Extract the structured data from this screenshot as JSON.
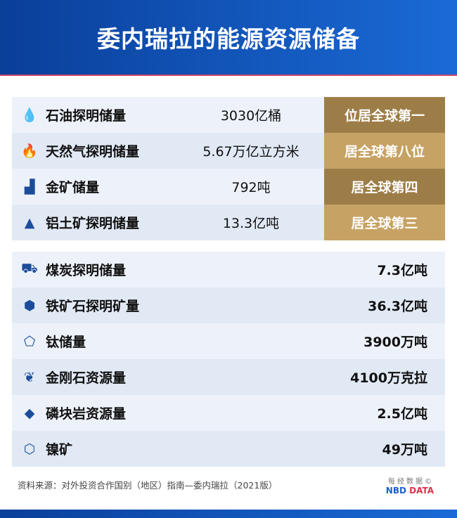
{
  "title": "委内瑞拉的能源资源储备",
  "ranked": [
    {
      "icon": "droplet-icon",
      "glyph": "💧",
      "label": "石油探明储量",
      "value": "3030亿桶",
      "rank": "位居全球第一"
    },
    {
      "icon": "flame-icon",
      "glyph": "🔥",
      "label": "天然气探明储量",
      "value": "5.67万亿立方米",
      "rank": "居全球第八位"
    },
    {
      "icon": "gold-bars-icon",
      "glyph": "▟",
      "label": "金矿储量",
      "value": "792吨",
      "rank": "居全球第四"
    },
    {
      "icon": "mountain-icon",
      "glyph": "▲",
      "label": "铝土矿探明储量",
      "value": "13.3亿吨",
      "rank": "居全球第三"
    }
  ],
  "others": [
    {
      "icon": "coal-cart-icon",
      "glyph": "⛟",
      "label": "煤炭探明储量",
      "value": "7.3亿吨"
    },
    {
      "icon": "iron-ore-icon",
      "glyph": "⬢",
      "label": "铁矿石探明矿量",
      "value": "36.3亿吨"
    },
    {
      "icon": "titanium-icon",
      "glyph": "⬠",
      "label": "钛储量",
      "value": "3900万吨"
    },
    {
      "icon": "diamond-icon",
      "glyph": "❦",
      "label": "金刚石资源量",
      "value": "4100万克拉"
    },
    {
      "icon": "phosphate-icon",
      "glyph": "◆",
      "label": "磷块岩资源量",
      "value": "2.5亿吨"
    },
    {
      "icon": "nickel-icon",
      "glyph": "⬡",
      "label": "镍矿",
      "value": "49万吨"
    }
  ],
  "source": "资料来源：对外投资合作国别（地区）指南—委内瑞拉（2021版）",
  "logo": {
    "cn": "每经数据©",
    "en1": "NBD",
    "en2": " DATA"
  }
}
